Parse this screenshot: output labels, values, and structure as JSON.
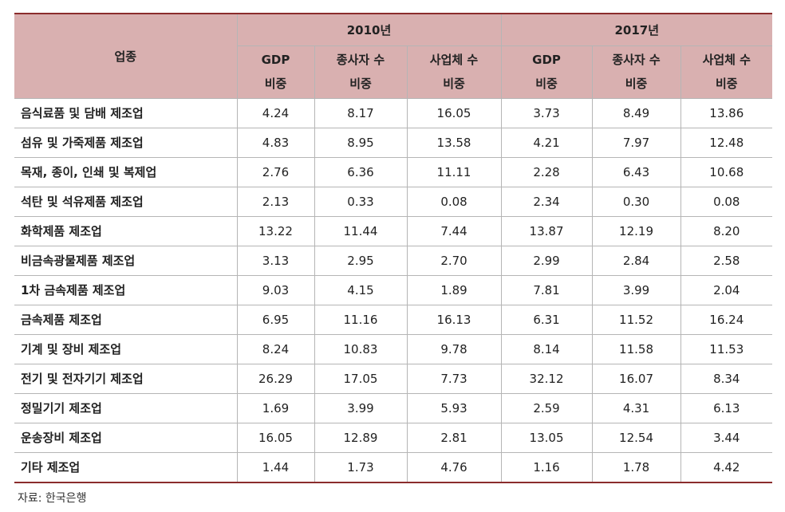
{
  "table": {
    "header": {
      "label": "업종",
      "groups": [
        "2010년",
        "2017년"
      ],
      "subheaders": [
        [
          "GDP",
          "비중"
        ],
        [
          "종사자 수",
          "비중"
        ],
        [
          "사업체 수",
          "비중"
        ],
        [
          "GDP",
          "비중"
        ],
        [
          "종사자 수",
          "비중"
        ],
        [
          "사업체 수",
          "비중"
        ]
      ]
    },
    "rows": [
      [
        "음식료품 및 담배 제조업",
        "4.24",
        "8.17",
        "16.05",
        "3.73",
        "8.49",
        "13.86"
      ],
      [
        "섬유 및 가죽제품 제조업",
        "4.83",
        "8.95",
        "13.58",
        "4.21",
        "7.97",
        "12.48"
      ],
      [
        "목재, 종이, 인쇄 및 복제업",
        "2.76",
        "6.36",
        "11.11",
        "2.28",
        "6.43",
        "10.68"
      ],
      [
        "석탄 및 석유제품 제조업",
        "2.13",
        "0.33",
        "0.08",
        "2.34",
        "0.30",
        "0.08"
      ],
      [
        "화학제품 제조업",
        "13.22",
        "11.44",
        "7.44",
        "13.87",
        "12.19",
        "8.20"
      ],
      [
        "비금속광물제품 제조업",
        "3.13",
        "2.95",
        "2.70",
        "2.99",
        "2.84",
        "2.58"
      ],
      [
        "1차 금속제품 제조업",
        "9.03",
        "4.15",
        "1.89",
        "7.81",
        "3.99",
        "2.04"
      ],
      [
        "금속제품 제조업",
        "6.95",
        "11.16",
        "16.13",
        "6.31",
        "11.52",
        "16.24"
      ],
      [
        "기계 및 장비 제조업",
        "8.24",
        "10.83",
        "9.78",
        "8.14",
        "11.58",
        "11.53"
      ],
      [
        "전기 및 전자기기 제조업",
        "26.29",
        "17.05",
        "7.73",
        "32.12",
        "16.07",
        "8.34"
      ],
      [
        "정밀기기 제조업",
        "1.69",
        "3.99",
        "5.93",
        "2.59",
        "4.31",
        "6.13"
      ],
      [
        "운송장비 제조업",
        "16.05",
        "12.89",
        "2.81",
        "13.05",
        "12.54",
        "3.44"
      ],
      [
        "기타 제조업",
        "1.44",
        "1.73",
        "4.76",
        "1.16",
        "1.78",
        "4.42"
      ]
    ]
  },
  "source": "자료: 한국은행"
}
